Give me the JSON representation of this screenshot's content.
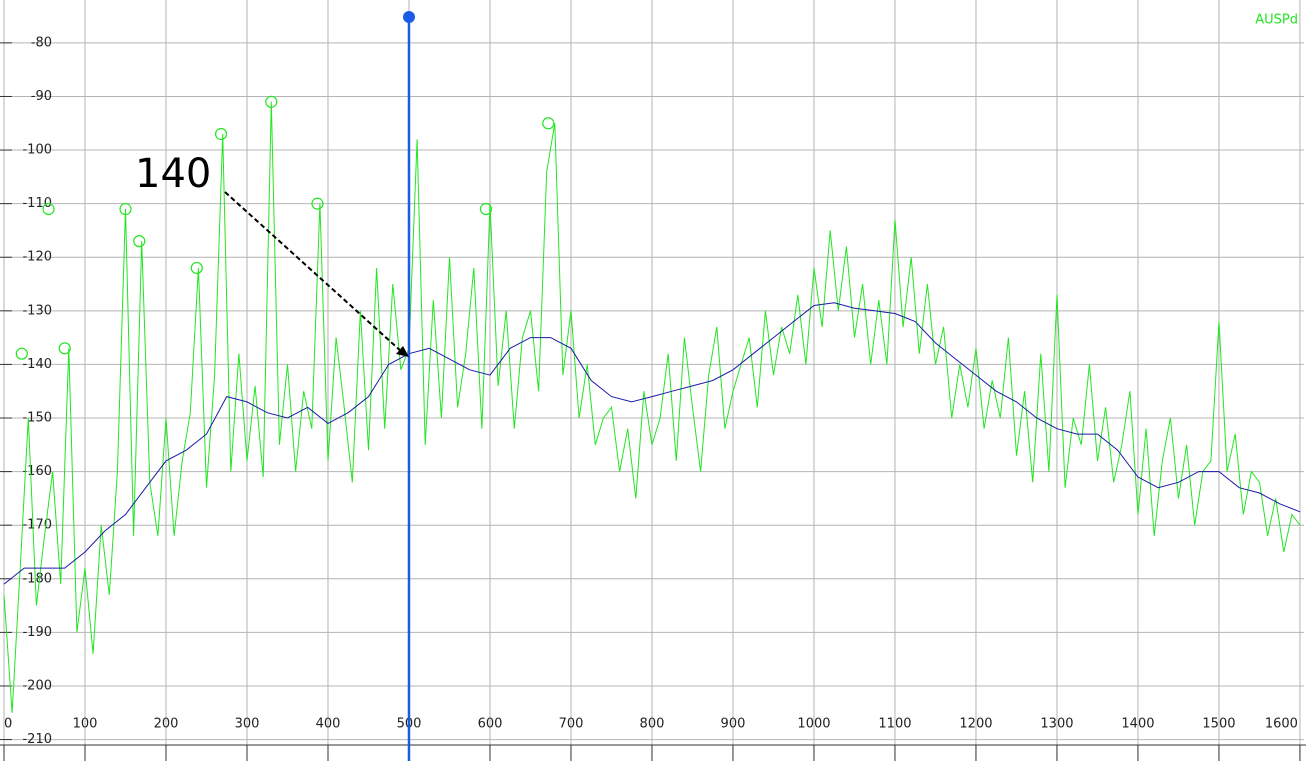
{
  "chart_data": {
    "type": "line",
    "xlim": [
      0,
      1605
    ],
    "ylim": [
      -214,
      -72
    ],
    "xticks": [
      0,
      100,
      200,
      300,
      400,
      500,
      600,
      700,
      800,
      900,
      1000,
      1100,
      1200,
      1300,
      1400,
      1500,
      1600
    ],
    "yticks": [
      -80,
      -90,
      -100,
      -110,
      -120,
      -130,
      -140,
      -150,
      -160,
      -170,
      -180,
      -190,
      -200,
      -210
    ],
    "grid": true,
    "legend": "top-right",
    "annotation": "140",
    "cursor_x": 500,
    "series": [
      {
        "name": "AUSPd",
        "color": "#22e622",
        "x": [
          0,
          10,
          20,
          30,
          40,
          50,
          60,
          70,
          80,
          90,
          100,
          110,
          120,
          130,
          140,
          150,
          160,
          170,
          180,
          190,
          200,
          210,
          220,
          230,
          240,
          250,
          260,
          270,
          280,
          290,
          300,
          310,
          320,
          330,
          340,
          350,
          360,
          370,
          380,
          390,
          400,
          410,
          420,
          430,
          440,
          450,
          460,
          470,
          480,
          490,
          500,
          510,
          520,
          530,
          540,
          550,
          560,
          570,
          580,
          590,
          600,
          610,
          620,
          630,
          640,
          650,
          660,
          670,
          680,
          690,
          700,
          710,
          720,
          730,
          740,
          750,
          760,
          770,
          780,
          790,
          800,
          810,
          820,
          830,
          840,
          850,
          860,
          870,
          880,
          890,
          900,
          910,
          920,
          930,
          940,
          950,
          960,
          970,
          980,
          990,
          1000,
          1010,
          1020,
          1030,
          1040,
          1050,
          1060,
          1070,
          1080,
          1090,
          1100,
          1110,
          1120,
          1130,
          1140,
          1150,
          1160,
          1170,
          1180,
          1190,
          1200,
          1210,
          1220,
          1230,
          1240,
          1250,
          1260,
          1270,
          1280,
          1290,
          1300,
          1310,
          1320,
          1330,
          1340,
          1350,
          1360,
          1370,
          1380,
          1390,
          1400,
          1410,
          1420,
          1430,
          1440,
          1450,
          1460,
          1470,
          1480,
          1490,
          1500,
          1510,
          1520,
          1530,
          1540,
          1550,
          1560,
          1570,
          1580,
          1590,
          1600
        ],
        "values": [
          -183,
          -205,
          -178,
          -150,
          -185,
          -172,
          -160,
          -181,
          -137,
          -190,
          -178,
          -194,
          -170,
          -183,
          -160,
          -111,
          -172,
          -117,
          -162,
          -172,
          -150,
          -172,
          -158,
          -149,
          -122,
          -163,
          -142,
          -97,
          -160,
          -138,
          -158,
          -144,
          -161,
          -91,
          -155,
          -140,
          -160,
          -145,
          -152,
          -110,
          -158,
          -135,
          -148,
          -162,
          -130,
          -156,
          -122,
          -152,
          -125,
          -141,
          -137,
          -98,
          -155,
          -128,
          -150,
          -120,
          -148,
          -138,
          -122,
          -152,
          -110,
          -144,
          -130,
          -152,
          -135,
          -130,
          -145,
          -104,
          -95,
          -142,
          -130,
          -150,
          -140,
          -155,
          -150,
          -148,
          -160,
          -152,
          -165,
          -145,
          -155,
          -150,
          -138,
          -158,
          -135,
          -148,
          -160,
          -142,
          -133,
          -152,
          -145,
          -140,
          -135,
          -148,
          -130,
          -142,
          -133,
          -138,
          -127,
          -140,
          -122,
          -133,
          -115,
          -130,
          -118,
          -135,
          -125,
          -140,
          -128,
          -140,
          -113,
          -133,
          -120,
          -138,
          -125,
          -140,
          -133,
          -150,
          -140,
          -148,
          -137,
          -152,
          -143,
          -150,
          -135,
          -157,
          -145,
          -162,
          -138,
          -160,
          -127,
          -163,
          -150,
          -155,
          -140,
          -158,
          -148,
          -162,
          -155,
          -145,
          -168,
          -152,
          -172,
          -158,
          -150,
          -165,
          -155,
          -170,
          -160,
          -158,
          -132,
          -160,
          -153,
          -168,
          -160,
          -162,
          -172,
          -165,
          -175,
          -168,
          -170
        ]
      },
      {
        "color": "#1a1aa8",
        "x": [
          0,
          25,
          50,
          75,
          100,
          125,
          150,
          175,
          200,
          225,
          250,
          275,
          300,
          325,
          350,
          375,
          400,
          425,
          450,
          475,
          500,
          525,
          550,
          575,
          600,
          625,
          650,
          675,
          700,
          725,
          750,
          775,
          800,
          825,
          850,
          875,
          900,
          925,
          950,
          975,
          1000,
          1025,
          1050,
          1075,
          1100,
          1125,
          1150,
          1175,
          1200,
          1225,
          1250,
          1275,
          1300,
          1325,
          1350,
          1375,
          1400,
          1425,
          1450,
          1475,
          1500,
          1525,
          1550,
          1575,
          1600
        ],
        "values": [
          -181,
          -178,
          -178,
          -178,
          -175,
          -171,
          -168,
          -163,
          -158,
          -156,
          -153,
          -146,
          -147,
          -149,
          -150,
          -148,
          -151,
          -149,
          -146,
          -140,
          -138,
          -137,
          -139,
          -141,
          -142,
          -137,
          -135,
          -135,
          -137,
          -143,
          -146,
          -147,
          -146,
          -145,
          -144,
          -143,
          -141,
          -138,
          -135,
          -132,
          -129,
          -128.5,
          -129.5,
          -130,
          -130.5,
          -132,
          -136,
          -139,
          -142,
          -145,
          -147,
          -150,
          -152,
          -153,
          -153,
          -156,
          -161,
          -163,
          -162,
          -160,
          -160,
          -163,
          -164,
          -166,
          -167.5
        ]
      }
    ],
    "peaks": {
      "color": "#22e622",
      "x": [
        22,
        55,
        75,
        150,
        167,
        238,
        268,
        330,
        387,
        595,
        672
      ],
      "values": [
        -138,
        -111,
        -137,
        -111,
        -117,
        -122,
        -97,
        -91,
        -110,
        -111,
        -95
      ]
    }
  }
}
